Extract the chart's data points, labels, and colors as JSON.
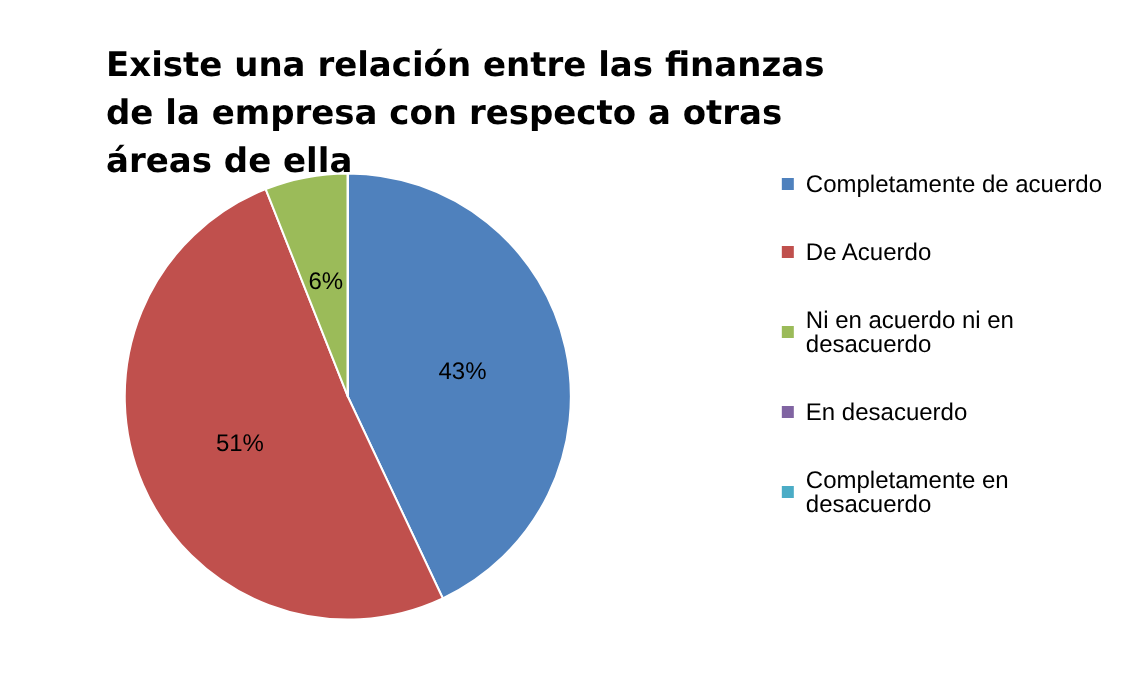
{
  "chart_data": {
    "type": "pie",
    "title": "Existe una relación entre las finanzas de la empresa con respecto a otras áreas de ella",
    "categories": [
      "Completamente de acuerdo",
      "De Acuerdo",
      "Ni en acuerdo ni en desacuerdo",
      "En desacuerdo",
      "Completamente en desacuerdo"
    ],
    "values": [
      43,
      51,
      6,
      0,
      0
    ],
    "colors": [
      "#4f81bd",
      "#c0504d",
      "#9bbb59",
      "#8064a2",
      "#4bacc6"
    ],
    "value_labels": [
      "43%",
      "51%",
      "6%",
      null,
      null
    ],
    "legend": "right"
  }
}
